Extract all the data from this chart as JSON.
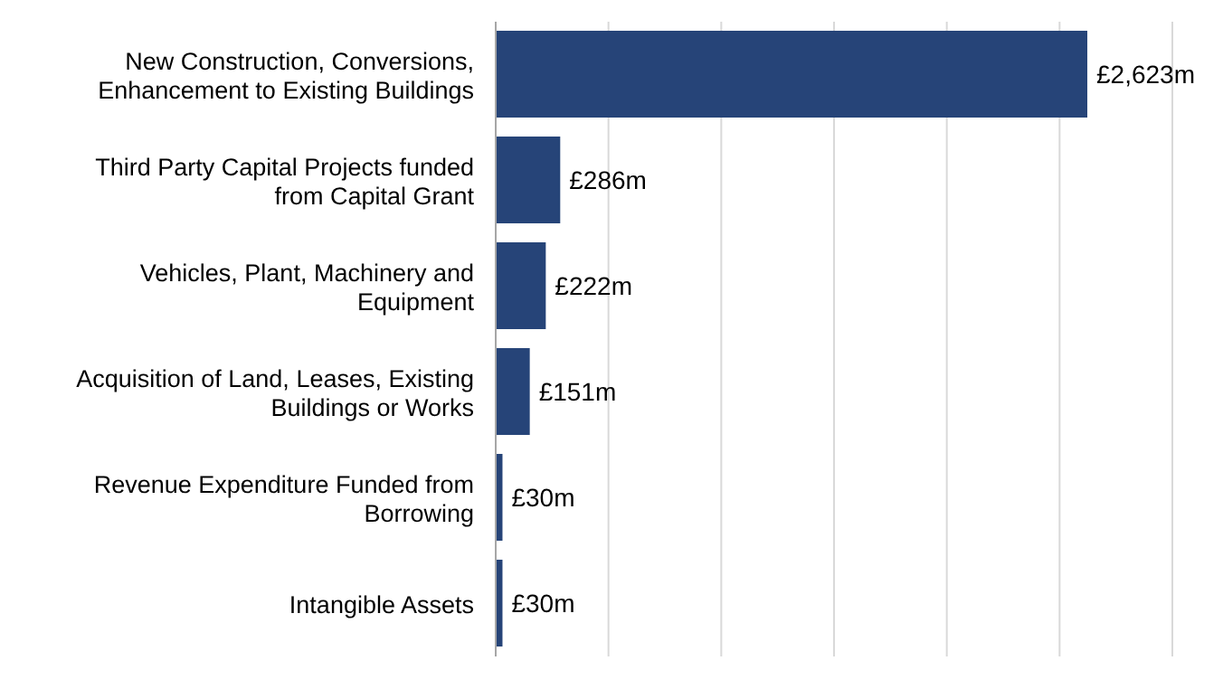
{
  "chart_data": {
    "type": "bar",
    "orientation": "horizontal",
    "categories": [
      "New Construction, Conversions, Enhancement to Existing Buildings",
      "Third Party Capital Projects funded from Capital Grant",
      "Vehicles, Plant, Machinery and Equipment",
      "Acquisition of Land, Leases, Existing Buildings or Works",
      "Revenue Expenditure Funded from Borrowing",
      "Intangible Assets"
    ],
    "values": [
      2623,
      286,
      222,
      151,
      30,
      30
    ],
    "value_labels": [
      "£2,623m",
      "£286m",
      "£222m",
      "£151m",
      "£30m",
      "£30m"
    ],
    "color": "#264478",
    "xlim": [
      0,
      3000
    ],
    "xticks": [
      {
        "value": 0,
        "label": null
      },
      {
        "value": 500,
        "label": null
      },
      {
        "value": 1000,
        "label": null
      },
      {
        "value": 1500,
        "label": null
      },
      {
        "value": 2000,
        "label": null
      },
      {
        "value": 2500,
        "label": null
      },
      {
        "value": 3000,
        "label": null
      }
    ],
    "grid": "x",
    "tick_labels": "y",
    "legend": false
  }
}
